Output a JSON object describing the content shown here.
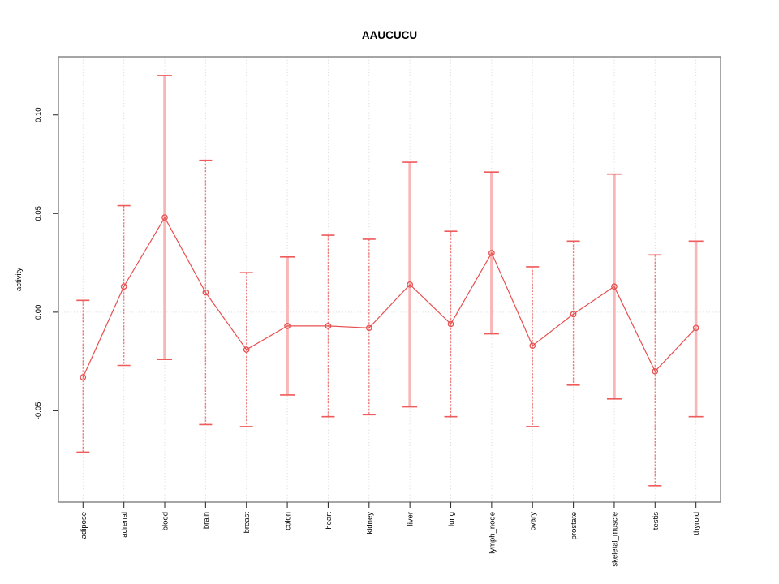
{
  "chart_data": {
    "type": "line",
    "subtype": "points-with-error-bars",
    "title": "AAUCUCU",
    "xlabel": "",
    "ylabel": "activity",
    "categories": [
      "adipose",
      "adrenal",
      "blood",
      "brain",
      "breast",
      "colon",
      "heart",
      "kidney",
      "liver",
      "lung",
      "lymph_node",
      "ovary",
      "prostate",
      "skeletal_muscle",
      "testis",
      "thyroid"
    ],
    "series": [
      {
        "name": "activity",
        "values": [
          -0.033,
          0.013,
          0.048,
          0.01,
          -0.019,
          -0.007,
          -0.007,
          -0.008,
          0.014,
          -0.006,
          0.03,
          -0.017,
          -0.001,
          0.013,
          -0.03,
          -0.008
        ],
        "upper": [
          0.006,
          0.054,
          0.12,
          0.077,
          0.02,
          0.028,
          0.039,
          0.037,
          0.076,
          0.041,
          0.071,
          0.023,
          0.036,
          0.07,
          0.029,
          0.036
        ],
        "lower": [
          -0.071,
          -0.027,
          -0.024,
          -0.057,
          -0.058,
          -0.042,
          -0.053,
          -0.052,
          -0.048,
          -0.053,
          -0.011,
          -0.058,
          -0.037,
          -0.044,
          -0.088,
          -0.053
        ]
      }
    ],
    "thick_bar_categories": [
      "blood",
      "colon",
      "liver",
      "lymph_node",
      "skeletal_muscle",
      "thyroid"
    ],
    "ylim": [
      -0.0963,
      0.1295
    ],
    "yticks": [
      {
        "value": -0.05,
        "label": "-0.05"
      },
      {
        "value": 0.0,
        "label": "0.00"
      },
      {
        "value": 0.05,
        "label": "0.05"
      },
      {
        "value": 0.1,
        "label": "0.10"
      }
    ],
    "grid": {
      "vertical_dotted_per_category": true,
      "horizontal_zero_line": true
    },
    "legend": "none",
    "colors": {
      "series": "#e84f4f",
      "error_bar_thin": "#f07a7a",
      "error_bar_thick": "#f8b6b6",
      "error_cap": "#ef5a5a",
      "grid": "#dcdcdc",
      "axis_box": "#7f7f7f",
      "tick": "#333333",
      "text": "#000000"
    }
  }
}
